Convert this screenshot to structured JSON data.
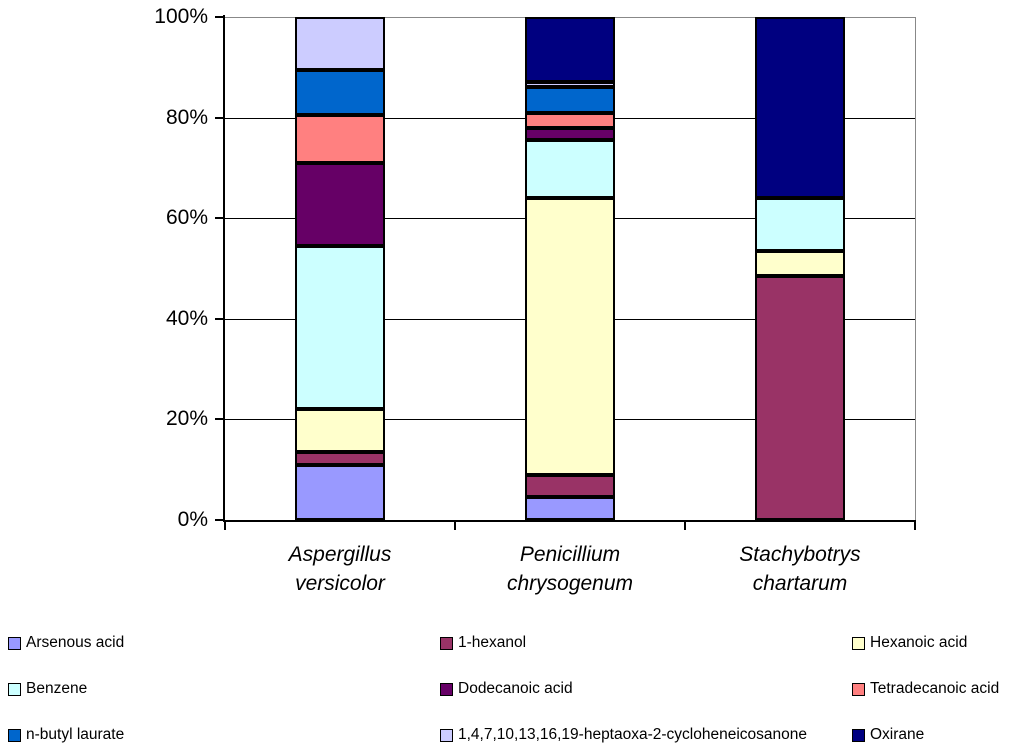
{
  "chart_data": {
    "type": "bar",
    "subtype": "100%-stacked-column",
    "title": "",
    "xlabel": "",
    "ylabel": "",
    "ylim": [
      0,
      100
    ],
    "grid": true,
    "legend_position": "bottom",
    "y_ticks": [
      "100%",
      "80%",
      "60%",
      "40%",
      "20%",
      "0%"
    ],
    "categories": [
      "Aspergillus versicolor",
      "Penicillium chrysogenum",
      "Stachybotrys chartarum"
    ],
    "categories_lines": [
      [
        "Aspergillus",
        "versicolor"
      ],
      [
        "Penicillium",
        "chrysogenum"
      ],
      [
        "Stachybotrys",
        "chartarum"
      ]
    ],
    "series": [
      {
        "name": "Arsenous acid",
        "color": "#9999FF",
        "values": [
          11,
          4.5,
          0
        ]
      },
      {
        "name": "1-hexanol",
        "color": "#993366",
        "values": [
          2.5,
          4.5,
          48.5
        ]
      },
      {
        "name": "Hexanoic acid",
        "color": "#FFFFCC",
        "values": [
          8.5,
          55,
          5
        ]
      },
      {
        "name": "Benzene",
        "color": "#CCFFFF",
        "values": [
          32.5,
          11.5,
          10.5
        ]
      },
      {
        "name": "Dodecanoic acid",
        "color": "#660066",
        "values": [
          16.5,
          2.5,
          0
        ]
      },
      {
        "name": "Tetradecanoic acid",
        "color": "#FF8080",
        "values": [
          9.5,
          3,
          0
        ]
      },
      {
        "name": "n-butyl laurate",
        "color": "#0066CC",
        "values": [
          9,
          5,
          0
        ]
      },
      {
        "name": "1,4,7,10,13,16,19-heptaoxa-2-cycloheneicosanone",
        "color": "#CCCCFF",
        "values": [
          10.5,
          1,
          0
        ]
      },
      {
        "name": "Oxirane",
        "color": "#000080",
        "values": [
          0,
          13,
          36
        ]
      }
    ]
  },
  "legend": {
    "items": [
      {
        "label": "Arsenous acid",
        "color": "#9999FF"
      },
      {
        "label": "1-hexanol",
        "color": "#993366"
      },
      {
        "label": "Hexanoic acid",
        "color": "#FFFFCC"
      },
      {
        "label": "Benzene",
        "color": "#CCFFFF"
      },
      {
        "label": "Dodecanoic acid",
        "color": "#660066"
      },
      {
        "label": "Tetradecanoic acid",
        "color": "#FF8080"
      },
      {
        "label": "n-butyl laurate",
        "color": "#0066CC"
      },
      {
        "label": "1,4,7,10,13,16,19-heptaoxa-2-cycloheneicosanone",
        "color": "#CCCCFF"
      },
      {
        "label": "Oxirane",
        "color": "#000080"
      }
    ]
  },
  "colors": {
    "axis": "#000000",
    "gridline": "#000000",
    "plot_border": "#888888",
    "background": "#FFFFFF"
  }
}
